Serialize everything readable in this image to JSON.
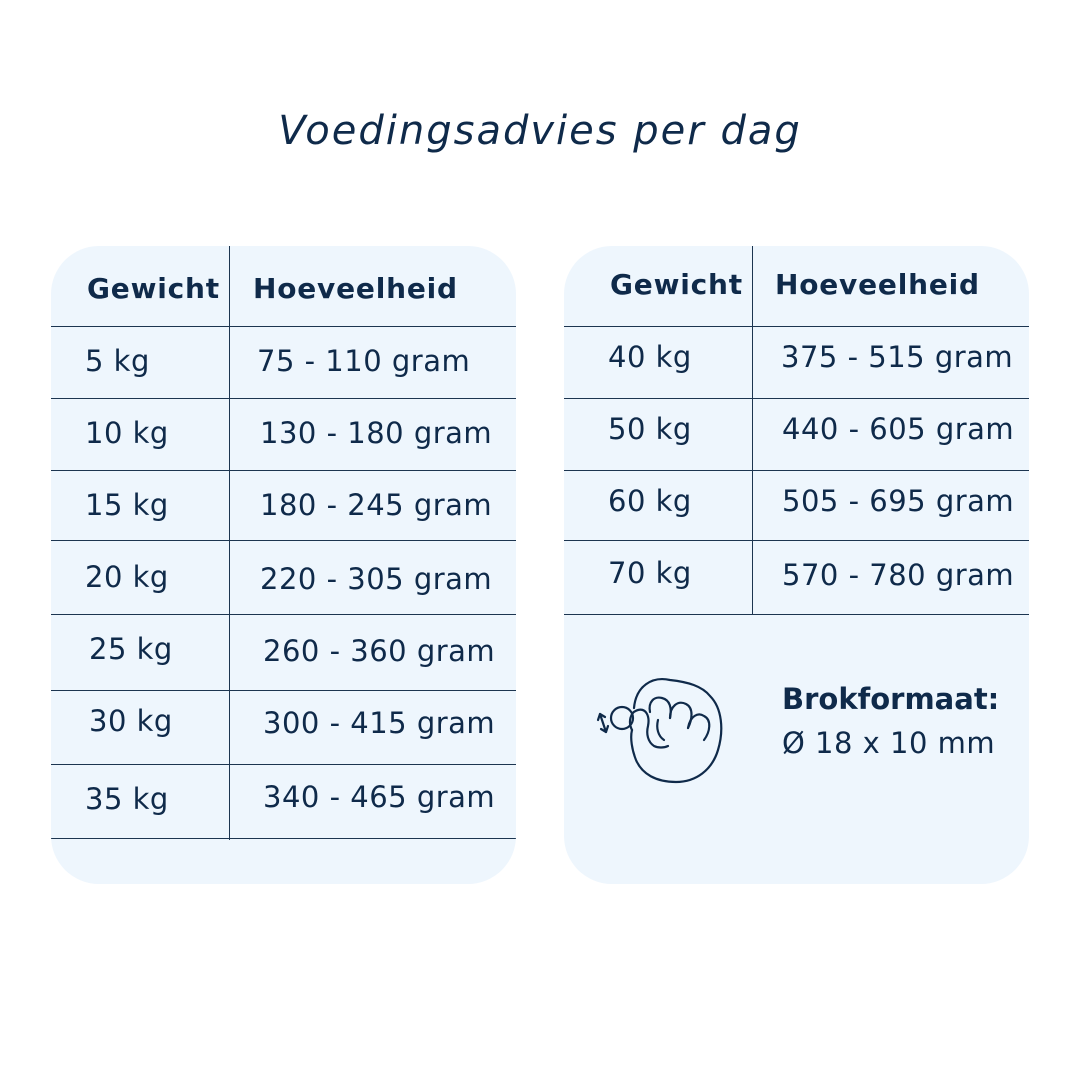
{
  "title": "Voedingsadvies per dag",
  "headers": {
    "weight": "Gewicht",
    "amount": "Hoeveelheid"
  },
  "left_table": [
    {
      "weight": "5 kg",
      "amount": "75 - 110 gram"
    },
    {
      "weight": "10 kg",
      "amount": "130 - 180 gram"
    },
    {
      "weight": "15 kg",
      "amount": "180 - 245 gram"
    },
    {
      "weight": "20 kg",
      "amount": "220 - 305 gram"
    },
    {
      "weight": "25 kg",
      "amount": "260 - 360 gram"
    },
    {
      "weight": "30 kg",
      "amount": "300 - 415 gram"
    },
    {
      "weight": "35 kg",
      "amount": "340 - 465 gram"
    }
  ],
  "right_table": [
    {
      "weight": "40 kg",
      "amount": "375 - 515 gram"
    },
    {
      "weight": "50 kg",
      "amount": "440 - 605 gram"
    },
    {
      "weight": "60 kg",
      "amount": "505 - 695 gram"
    },
    {
      "weight": "70 kg",
      "amount": "570 - 780 gram"
    }
  ],
  "kibble": {
    "label": "Brokformaat:",
    "size": "Ø 18 x 10 mm",
    "icon": "hand-holding-kibble-icon"
  },
  "colors": {
    "text": "#0f2a4a",
    "card": "#eef6fd",
    "line": "#1c3550"
  }
}
